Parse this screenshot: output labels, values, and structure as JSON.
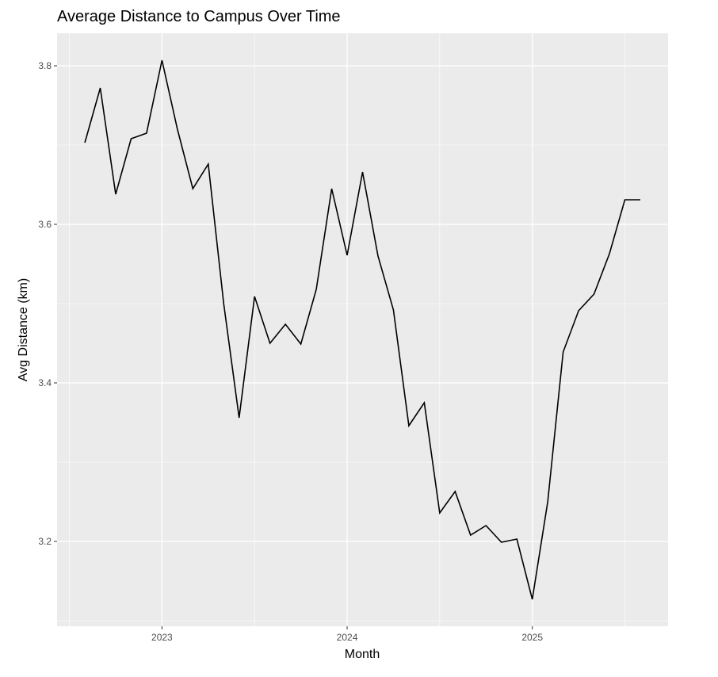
{
  "chart_data": {
    "type": "line",
    "title": "Average Distance to Campus Over Time",
    "subtitle": "",
    "xlabel": "Month",
    "ylabel": "Avg Distance (km)",
    "x_tick_labels": [
      "2023",
      "2024",
      "2025"
    ],
    "y_tick_labels": [
      "3.2",
      "3.4",
      "3.6",
      "3.8"
    ],
    "grid": true,
    "legend": "none",
    "colors": {
      "panel": "#ebebeb",
      "grid": "#ffffff",
      "line": "#000000",
      "tick_text": "#4d4d4d"
    },
    "series": [
      {
        "x": [
          "2022-08",
          "2022-09",
          "2022-10",
          "2022-11",
          "2022-12",
          "2023-01",
          "2023-02",
          "2023-03",
          "2023-04",
          "2023-05",
          "2023-06",
          "2023-07",
          "2023-08",
          "2023-09",
          "2023-10",
          "2023-11",
          "2023-12",
          "2024-01",
          "2024-02",
          "2024-03",
          "2024-04",
          "2024-05",
          "2024-06",
          "2024-07",
          "2024-08",
          "2024-09",
          "2024-10",
          "2024-11",
          "2024-12",
          "2025-01",
          "2025-02",
          "2025-03",
          "2025-04",
          "2025-05",
          "2025-06",
          "2025-07",
          "2025-08"
        ],
        "values": [
          3.703,
          3.772,
          3.638,
          3.708,
          3.715,
          3.807,
          3.72,
          3.645,
          3.676,
          3.5,
          3.356,
          3.509,
          3.45,
          3.474,
          3.449,
          3.518,
          3.645,
          3.561,
          3.666,
          3.56,
          3.492,
          3.346,
          3.375,
          3.236,
          3.263,
          3.208,
          3.22,
          3.199,
          3.203,
          3.127,
          3.25,
          3.439,
          3.491,
          3.512,
          3.563,
          3.631,
          3.631
        ]
      }
    ]
  }
}
